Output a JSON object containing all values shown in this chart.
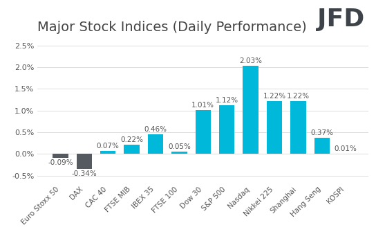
{
  "title": "Major Stock Indices (Daily Performance)",
  "categories": [
    "Euro Stoxx 50",
    "DAX",
    "CAC 40",
    "FTSE MIB",
    "IBEX 35",
    "FTSE 100",
    "Dow 30",
    "S&P 500",
    "Nasdaq",
    "Nikkei 225",
    "Shanghai",
    "Hang Seng",
    "KOSPI"
  ],
  "values": [
    -0.09,
    -0.34,
    0.07,
    0.22,
    0.46,
    0.05,
    1.01,
    1.12,
    2.03,
    1.22,
    1.22,
    0.37,
    0.01
  ],
  "bar_color_positive": "#00B8D9",
  "bar_color_negative": "#555A60",
  "label_color": "#555555",
  "title_color": "#444444",
  "background_color": "#FFFFFF",
  "grid_color": "#DDDDDD",
  "ylim": [
    -0.65,
    2.65
  ],
  "yticks": [
    -0.5,
    0.0,
    0.5,
    1.0,
    1.5,
    2.0,
    2.5
  ],
  "title_fontsize": 14,
  "label_fontsize": 7.5,
  "tick_fontsize": 8,
  "logo_text": "JFD",
  "logo_fontsize": 26,
  "logo_color": "#3D4349"
}
